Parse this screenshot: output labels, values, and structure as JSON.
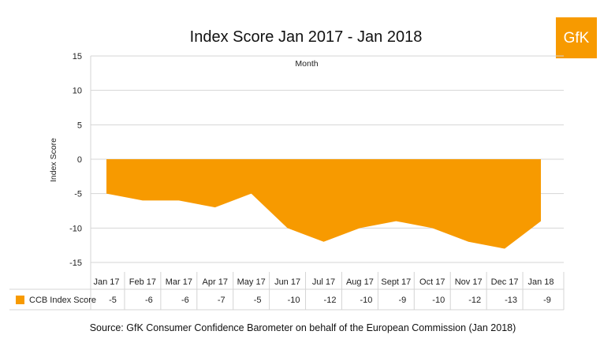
{
  "chart_data": {
    "type": "area",
    "title": "Index Score Jan 2017 - Jan 2018",
    "subtitle": "Month",
    "ylabel": "Index Score",
    "ylim": [
      -15,
      15
    ],
    "yticks": [
      15,
      10,
      5,
      0,
      -5,
      -10,
      -15
    ],
    "categories": [
      "Jan 17",
      "Feb 17",
      "Mar 17",
      "Apr 17",
      "May 17",
      "Jun 17",
      "Jul 17",
      "Aug 17",
      "Sept 17",
      "Oct 17",
      "Nov 17",
      "Dec 17",
      "Jan 18"
    ],
    "series": [
      {
        "name": "CCB Index Score",
        "values": [
          -5,
          -6,
          -6,
          -7,
          -5,
          -10,
          -12,
          -10,
          -9,
          -10,
          -12,
          -13,
          -9
        ],
        "color": "#F79A00"
      }
    ],
    "grid": true,
    "legend": "bottom-left (data table)"
  },
  "logo": {
    "text": "GfK",
    "color": "#F79A00"
  },
  "source": "Source: GfK Consumer Confidence Barometer on behalf of the European Commission (Jan 2018)"
}
